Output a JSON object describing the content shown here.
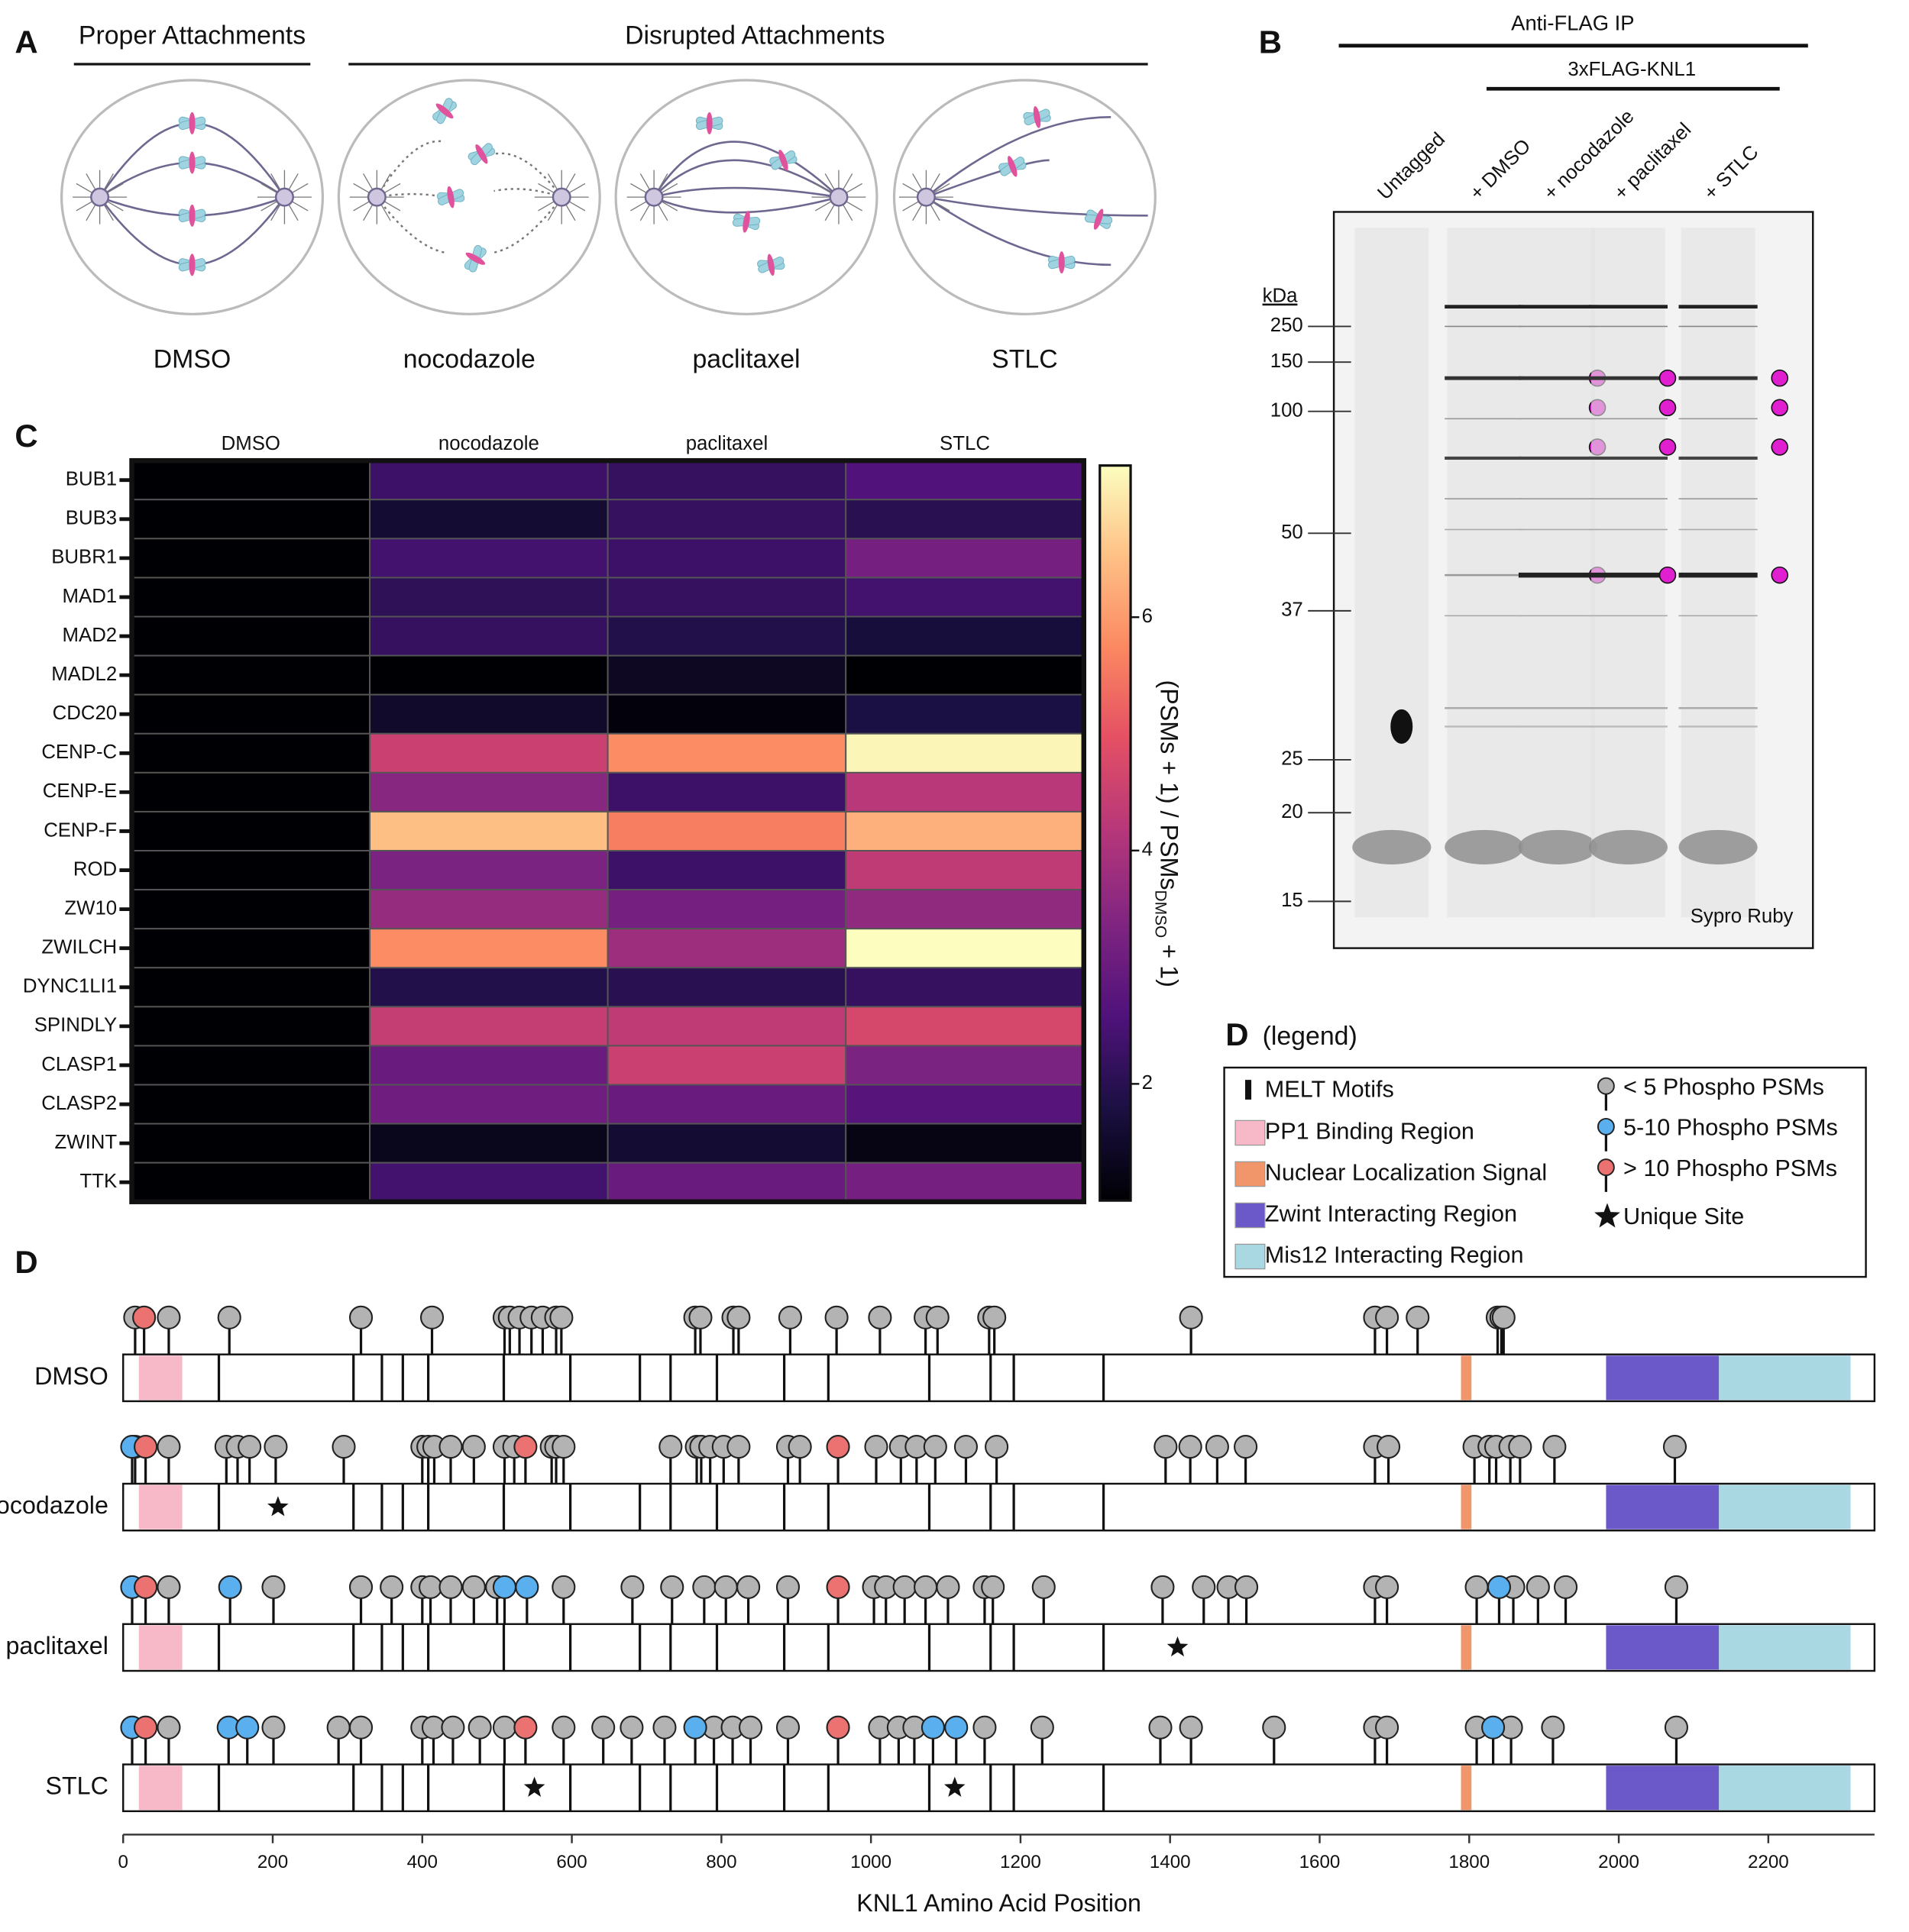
{
  "panel_a": {
    "label": "A",
    "headings": [
      "Proper Attachments",
      "Disrupted Attachments"
    ],
    "conditions": [
      "DMSO",
      "nocodazole",
      "paclitaxel",
      "STLC"
    ]
  },
  "panel_b": {
    "label": "B",
    "header": "Anti-FLAG IP",
    "subheader": "3xFLAG-KNL1",
    "lanes": [
      "Untagged",
      "+ DMSO",
      "+ nocodazole",
      "+ paclitaxel",
      "+ STLC"
    ],
    "unit": "kDa",
    "markers": [
      250,
      150,
      100,
      50,
      37,
      25,
      20,
      15
    ],
    "stain": "Sypro Ruby"
  },
  "chart_data": [
    {
      "type": "heatmap",
      "label": "C",
      "columns": [
        "DMSO",
        "nocodazole",
        "paclitaxel",
        "STLC"
      ],
      "rows": [
        "BUB1",
        "BUB3",
        "BUBR1",
        "MAD1",
        "MAD2",
        "MADL2",
        "CDC20",
        "CENP-C",
        "CENP-E",
        "CENP-F",
        "ROD",
        "ZW10",
        "ZWILCH",
        "DYNC1LI1",
        "SPINDLY",
        "CLASP1",
        "CLASP2",
        "ZWINT",
        "TTK"
      ],
      "values": [
        [
          1,
          2.3,
          2.2,
          2.6
        ],
        [
          1,
          1.6,
          2.2,
          2.0
        ],
        [
          1,
          2.4,
          2.3,
          3.2
        ],
        [
          1,
          2.1,
          2.2,
          2.4
        ],
        [
          1,
          2.2,
          1.9,
          1.7
        ],
        [
          1,
          1.0,
          1.4,
          1.0
        ],
        [
          1,
          1.5,
          1.1,
          1.8
        ],
        [
          1,
          4.5,
          5.8,
          7.2
        ],
        [
          1,
          3.5,
          2.3,
          4.2
        ],
        [
          1,
          6.5,
          5.6,
          6.3
        ],
        [
          1,
          3.3,
          2.3,
          4.3
        ],
        [
          1,
          3.7,
          3.2,
          3.6
        ],
        [
          1,
          5.8,
          3.8,
          7.3
        ],
        [
          1,
          1.9,
          2.0,
          2.2
        ],
        [
          1,
          4.4,
          4.3,
          4.7
        ],
        [
          1,
          3.0,
          4.5,
          3.3
        ],
        [
          1,
          3.1,
          3.0,
          2.7
        ],
        [
          1,
          1.3,
          1.6,
          1.2
        ],
        [
          1,
          2.4,
          3.0,
          3.2
        ]
      ],
      "colormap": "magma",
      "zlim": [
        1,
        7.3
      ],
      "zticks": [
        2,
        4,
        6
      ],
      "colorbar_label": [
        "(PSMs + 1) / PSMs",
        "DMSO",
        "+ 1)"
      ]
    },
    {
      "type": "lollipop",
      "label": "D",
      "legend_title": "(legend)",
      "xlim": [
        0,
        2342
      ],
      "xticks": [
        0,
        200,
        400,
        600,
        800,
        1000,
        1200,
        1400,
        1600,
        1800,
        2000,
        2200
      ],
      "xlabel": "KNL1 Amino Acid Position",
      "motif_name": "MELT Motifs",
      "motifs": [
        128,
        308,
        346,
        374,
        408,
        509,
        598,
        691,
        732,
        794,
        884,
        943,
        1078,
        1160,
        1191,
        1311
      ],
      "features": [
        {
          "name": "PP1 Binding Region",
          "color": "#f7b8c8",
          "start": 21,
          "end": 79
        },
        {
          "name": "Nuclear Localization Signal",
          "color": "#f1956b",
          "start": 1789,
          "end": 1803
        },
        {
          "name": "Zwint Interacting Region",
          "color": "#6c59c9",
          "start": 1983,
          "end": 2134
        },
        {
          "name": "Mis12 Interacting Region",
          "color": "#a9d8e3",
          "start": 2134,
          "end": 2310
        }
      ],
      "levels": [
        {
          "name": "< 5 Phospho PSMs",
          "color": "#b3b3b3"
        },
        {
          "name": "5-10 Phospho PSMs",
          "color": "#5aafef"
        },
        {
          "name": "> 10 Phospho PSMs",
          "color": "#ec7272"
        }
      ],
      "unique_name": "Unique Site",
      "tracks": [
        {
          "name": "DMSO",
          "sites": [
            [
              16,
              61,
              142,
              318,
              413,
              510,
              517,
              530,
              546,
              561,
              579,
              586,
              765,
              772,
              816,
              823,
              892,
              954,
              1012,
              1073,
              1089,
              1158,
              1165,
              1428,
              1674,
              1690,
              1731,
              1838,
              1843,
              1846
            ],
            [],
            [
              28
            ]
          ],
          "unique": []
        },
        {
          "name": "nocodazole",
          "sites": [
            [
              16,
              61,
              138,
              153,
              169,
              204,
              295,
              400,
              408,
              416,
              438,
              469,
              510,
              523,
              573,
              579,
              589,
              732,
              767,
              773,
              785,
              803,
              823,
              889,
              905,
              1007,
              1040,
              1061,
              1086,
              1127,
              1168,
              1394,
              1427,
              1463,
              1501,
              1674,
              1692,
              1807,
              1827,
              1836,
              1855,
              1868,
              1914,
              2075
            ],
            [
              12
            ],
            [
              30,
              538,
              956
            ]
          ],
          "unique": [
            207
          ]
        },
        {
          "name": "paclitaxel",
          "sites": [
            [
              61,
              201,
              318,
              359,
              400,
              411,
              438,
              469,
              500,
              589,
              681,
              734,
              777,
              806,
              836,
              889,
              1004,
              1020,
              1045,
              1073,
              1103,
              1152,
              1163,
              1231,
              1390,
              1445,
              1478,
              1502,
              1674,
              1690,
              1810,
              1859,
              1892,
              1929,
              2077
            ],
            [
              12,
              143,
              510,
              540,
              1840
            ],
            [
              30,
              956
            ]
          ],
          "unique": [
            1410
          ]
        },
        {
          "name": "STLC",
          "sites": [
            [
              61,
              201,
              288,
              318,
              400,
              415,
              441,
              477,
              510,
              589,
              642,
              680,
              724,
              790,
              815,
              839,
              889,
              1012,
              1037,
              1058,
              1152,
              1229,
              1387,
              1428,
              1539,
              1674,
              1690,
              1810,
              1856,
              1912,
              2077
            ],
            [
              12,
              141,
              166,
              765,
              1083,
              1114,
              1832
            ],
            [
              30,
              538,
              956
            ]
          ],
          "unique": [
            550,
            1112
          ]
        }
      ]
    }
  ]
}
